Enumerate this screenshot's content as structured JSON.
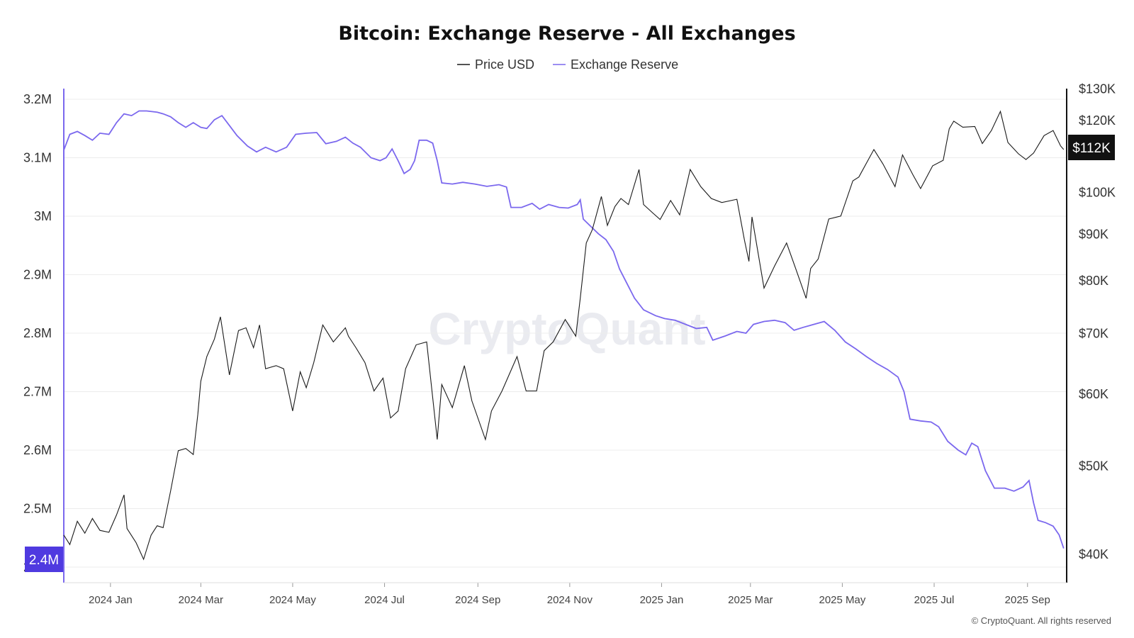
{
  "chart_data": {
    "type": "line",
    "title": "Bitcoin: Exchange Reserve - All Exchanges",
    "legend": {
      "placement": "top-center",
      "entries": [
        "Price USD",
        "Exchange Reserve"
      ]
    },
    "colors": {
      "price": "#1a1a1a",
      "reserve": "#7b68ee",
      "badge_price": "#111111",
      "badge_reserve": "#4f3ae0",
      "left_axis": "#7b68ee",
      "right_axis": "#111111"
    },
    "x_ticks": [
      "2024 Jan",
      "2024 Mar",
      "2024 May",
      "2024 Jul",
      "2024 Sep",
      "2024 Nov",
      "2025 Jan",
      "2025 Mar",
      "2025 May",
      "2025 Jul",
      "2025 Sep"
    ],
    "x_range": [
      "2023-12-01",
      "2025-09-27"
    ],
    "left_axis": {
      "ticks": [
        "3.2M",
        "3.1M",
        "3M",
        "2.9M",
        "2.8M",
        "2.7M",
        "2.6M",
        "2.5M",
        "2.4M"
      ],
      "min": 2.4,
      "max": 3.2,
      "unit": "M"
    },
    "right_axis": {
      "ticks": [
        "$130K",
        "$120K",
        "$100K",
        "$90K",
        "$80K",
        "$70K",
        "$60K",
        "$50K",
        "$40K"
      ],
      "scale": "log",
      "values": [
        130000,
        120000,
        100000,
        90000,
        80000,
        70000,
        60000,
        50000,
        40000
      ]
    },
    "last_values": {
      "price": "$112K",
      "reserve": "2.4M"
    },
    "grid": true,
    "series": [
      {
        "name": "Price USD",
        "axis": "right",
        "points": [
          [
            "2023-12-01",
            42000
          ],
          [
            "2023-12-05",
            41000
          ],
          [
            "2023-12-10",
            43500
          ],
          [
            "2023-12-15",
            42200
          ],
          [
            "2023-12-20",
            43800
          ],
          [
            "2023-12-25",
            42500
          ],
          [
            "2023-12-31",
            42300
          ],
          [
            "2024-01-05",
            44200
          ],
          [
            "2024-01-10",
            46500
          ],
          [
            "2024-01-12",
            42700
          ],
          [
            "2024-01-18",
            41200
          ],
          [
            "2024-01-23",
            39500
          ],
          [
            "2024-01-28",
            42000
          ],
          [
            "2024-02-01",
            43000
          ],
          [
            "2024-02-05",
            42800
          ],
          [
            "2024-02-10",
            47000
          ],
          [
            "2024-02-15",
            52000
          ],
          [
            "2024-02-20",
            52300
          ],
          [
            "2024-02-25",
            51500
          ],
          [
            "2024-02-28",
            57000
          ],
          [
            "2024-03-01",
            62000
          ],
          [
            "2024-03-05",
            66000
          ],
          [
            "2024-03-10",
            69000
          ],
          [
            "2024-03-14",
            73000
          ],
          [
            "2024-03-20",
            63000
          ],
          [
            "2024-03-26",
            70500
          ],
          [
            "2024-03-31",
            71000
          ],
          [
            "2024-04-05",
            67500
          ],
          [
            "2024-04-09",
            71500
          ],
          [
            "2024-04-13",
            64000
          ],
          [
            "2024-04-20",
            64500
          ],
          [
            "2024-04-25",
            64000
          ],
          [
            "2024-05-01",
            57500
          ],
          [
            "2024-05-06",
            63500
          ],
          [
            "2024-05-10",
            61000
          ],
          [
            "2024-05-15",
            65000
          ],
          [
            "2024-05-21",
            71500
          ],
          [
            "2024-05-28",
            68500
          ],
          [
            "2024-06-05",
            71000
          ],
          [
            "2024-06-07",
            69500
          ],
          [
            "2024-06-12",
            67500
          ],
          [
            "2024-06-18",
            65000
          ],
          [
            "2024-06-24",
            60500
          ],
          [
            "2024-06-30",
            62500
          ],
          [
            "2024-07-05",
            56500
          ],
          [
            "2024-07-10",
            57500
          ],
          [
            "2024-07-15",
            64000
          ],
          [
            "2024-07-22",
            68000
          ],
          [
            "2024-07-29",
            68500
          ],
          [
            "2024-08-05",
            53500
          ],
          [
            "2024-08-08",
            61500
          ],
          [
            "2024-08-15",
            58000
          ],
          [
            "2024-08-23",
            64500
          ],
          [
            "2024-08-28",
            59000
          ],
          [
            "2024-09-06",
            53500
          ],
          [
            "2024-09-10",
            57500
          ],
          [
            "2024-09-17",
            60500
          ],
          [
            "2024-09-27",
            66000
          ],
          [
            "2024-10-03",
            60500
          ],
          [
            "2024-10-10",
            60500
          ],
          [
            "2024-10-15",
            67000
          ],
          [
            "2024-10-21",
            68500
          ],
          [
            "2024-10-29",
            72500
          ],
          [
            "2024-11-05",
            69500
          ],
          [
            "2024-11-08",
            76500
          ],
          [
            "2024-11-12",
            88000
          ],
          [
            "2024-11-16",
            91000
          ],
          [
            "2024-11-22",
            99000
          ],
          [
            "2024-11-26",
            92000
          ],
          [
            "2024-12-01",
            96500
          ],
          [
            "2024-12-05",
            98500
          ],
          [
            "2024-12-10",
            97000
          ],
          [
            "2024-12-17",
            106000
          ],
          [
            "2024-12-20",
            97000
          ],
          [
            "2024-12-26",
            95000
          ],
          [
            "2024-12-31",
            93400
          ],
          [
            "2025-01-07",
            98000
          ],
          [
            "2025-01-13",
            94500
          ],
          [
            "2025-01-20",
            106000
          ],
          [
            "2025-01-27",
            101500
          ],
          [
            "2025-02-03",
            98500
          ],
          [
            "2025-02-10",
            97500
          ],
          [
            "2025-02-20",
            98300
          ],
          [
            "2025-02-25",
            88700
          ],
          [
            "2025-02-28",
            84000
          ],
          [
            "2025-03-02",
            94000
          ],
          [
            "2025-03-10",
            78500
          ],
          [
            "2025-03-17",
            83000
          ],
          [
            "2025-03-25",
            88000
          ],
          [
            "2025-03-31",
            82500
          ],
          [
            "2025-04-07",
            76500
          ],
          [
            "2025-04-10",
            82500
          ],
          [
            "2025-04-15",
            84500
          ],
          [
            "2025-04-22",
            93500
          ],
          [
            "2025-04-30",
            94200
          ],
          [
            "2025-05-08",
            103000
          ],
          [
            "2025-05-12",
            104000
          ],
          [
            "2025-05-22",
            111500
          ],
          [
            "2025-05-28",
            107500
          ],
          [
            "2025-06-05",
            101500
          ],
          [
            "2025-06-10",
            110000
          ],
          [
            "2025-06-17",
            104500
          ],
          [
            "2025-06-22",
            101000
          ],
          [
            "2025-06-30",
            107000
          ],
          [
            "2025-07-07",
            108500
          ],
          [
            "2025-07-11",
            117500
          ],
          [
            "2025-07-14",
            119800
          ],
          [
            "2025-07-20",
            118000
          ],
          [
            "2025-07-28",
            118200
          ],
          [
            "2025-08-02",
            113200
          ],
          [
            "2025-08-08",
            117000
          ],
          [
            "2025-08-14",
            122800
          ],
          [
            "2025-08-19",
            113500
          ],
          [
            "2025-08-26",
            110300
          ],
          [
            "2025-08-31",
            108700
          ],
          [
            "2025-09-05",
            110500
          ],
          [
            "2025-09-12",
            115500
          ],
          [
            "2025-09-18",
            117000
          ],
          [
            "2025-09-23",
            112500
          ],
          [
            "2025-09-25",
            111500
          ]
        ]
      },
      {
        "name": "Exchange Reserve",
        "axis": "left",
        "points": [
          [
            "2023-12-01",
            3.113
          ],
          [
            "2023-12-05",
            3.14
          ],
          [
            "2023-12-10",
            3.145
          ],
          [
            "2023-12-15",
            3.138
          ],
          [
            "2023-12-20",
            3.13
          ],
          [
            "2023-12-25",
            3.142
          ],
          [
            "2023-12-31",
            3.14
          ],
          [
            "2024-01-05",
            3.16
          ],
          [
            "2024-01-10",
            3.175
          ],
          [
            "2024-01-15",
            3.172
          ],
          [
            "2024-01-20",
            3.18
          ],
          [
            "2024-01-25",
            3.18
          ],
          [
            "2024-02-01",
            3.178
          ],
          [
            "2024-02-05",
            3.175
          ],
          [
            "2024-02-10",
            3.17
          ],
          [
            "2024-02-15",
            3.16
          ],
          [
            "2024-02-20",
            3.152
          ],
          [
            "2024-02-25",
            3.16
          ],
          [
            "2024-03-01",
            3.152
          ],
          [
            "2024-03-05",
            3.15
          ],
          [
            "2024-03-10",
            3.165
          ],
          [
            "2024-03-15",
            3.172
          ],
          [
            "2024-03-20",
            3.155
          ],
          [
            "2024-03-25",
            3.138
          ],
          [
            "2024-04-01",
            3.12
          ],
          [
            "2024-04-07",
            3.11
          ],
          [
            "2024-04-13",
            3.118
          ],
          [
            "2024-04-20",
            3.11
          ],
          [
            "2024-04-27",
            3.118
          ],
          [
            "2024-05-03",
            3.14
          ],
          [
            "2024-05-10",
            3.142
          ],
          [
            "2024-05-17",
            3.143
          ],
          [
            "2024-05-23",
            3.124
          ],
          [
            "2024-05-30",
            3.128
          ],
          [
            "2024-06-05",
            3.135
          ],
          [
            "2024-06-10",
            3.125
          ],
          [
            "2024-06-15",
            3.118
          ],
          [
            "2024-06-22",
            3.1
          ],
          [
            "2024-06-28",
            3.095
          ],
          [
            "2024-07-02",
            3.1
          ],
          [
            "2024-07-06",
            3.115
          ],
          [
            "2024-07-10",
            3.095
          ],
          [
            "2024-07-14",
            3.073
          ],
          [
            "2024-07-18",
            3.08
          ],
          [
            "2024-07-21",
            3.095
          ],
          [
            "2024-07-24",
            3.13
          ],
          [
            "2024-07-29",
            3.13
          ],
          [
            "2024-08-02",
            3.125
          ],
          [
            "2024-08-05",
            3.095
          ],
          [
            "2024-08-08",
            3.057
          ],
          [
            "2024-08-15",
            3.055
          ],
          [
            "2024-08-22",
            3.058
          ],
          [
            "2024-08-30",
            3.055
          ],
          [
            "2024-09-07",
            3.051
          ],
          [
            "2024-09-15",
            3.054
          ],
          [
            "2024-09-20",
            3.05
          ],
          [
            "2024-09-23",
            3.015
          ],
          [
            "2024-09-30",
            3.015
          ],
          [
            "2024-10-07",
            3.022
          ],
          [
            "2024-10-12",
            3.012
          ],
          [
            "2024-10-18",
            3.02
          ],
          [
            "2024-10-25",
            3.015
          ],
          [
            "2024-10-31",
            3.014
          ],
          [
            "2024-11-06",
            3.02
          ],
          [
            "2024-11-08",
            3.028
          ],
          [
            "2024-11-10",
            2.995
          ],
          [
            "2024-11-14",
            2.985
          ],
          [
            "2024-11-20",
            2.97
          ],
          [
            "2024-11-25",
            2.96
          ],
          [
            "2024-11-30",
            2.94
          ],
          [
            "2024-12-04",
            2.91
          ],
          [
            "2024-12-08",
            2.89
          ],
          [
            "2024-12-14",
            2.86
          ],
          [
            "2024-12-20",
            2.84
          ],
          [
            "2024-12-28",
            2.83
          ],
          [
            "2025-01-03",
            2.825
          ],
          [
            "2025-01-10",
            2.822
          ],
          [
            "2025-01-17",
            2.815
          ],
          [
            "2025-01-24",
            2.808
          ],
          [
            "2025-01-31",
            2.81
          ],
          [
            "2025-02-04",
            2.788
          ],
          [
            "2025-02-12",
            2.795
          ],
          [
            "2025-02-20",
            2.803
          ],
          [
            "2025-02-26",
            2.8
          ],
          [
            "2025-03-03",
            2.815
          ],
          [
            "2025-03-10",
            2.82
          ],
          [
            "2025-03-17",
            2.822
          ],
          [
            "2025-03-24",
            2.818
          ],
          [
            "2025-03-30",
            2.805
          ],
          [
            "2025-04-05",
            2.81
          ],
          [
            "2025-04-12",
            2.815
          ],
          [
            "2025-04-19",
            2.82
          ],
          [
            "2025-04-26",
            2.805
          ],
          [
            "2025-05-03",
            2.785
          ],
          [
            "2025-05-10",
            2.773
          ],
          [
            "2025-05-17",
            2.76
          ],
          [
            "2025-05-24",
            2.748
          ],
          [
            "2025-05-31",
            2.738
          ],
          [
            "2025-06-07",
            2.725
          ],
          [
            "2025-06-11",
            2.7
          ],
          [
            "2025-06-15",
            2.653
          ],
          [
            "2025-06-22",
            2.65
          ],
          [
            "2025-06-29",
            2.648
          ],
          [
            "2025-07-04",
            2.64
          ],
          [
            "2025-07-10",
            2.615
          ],
          [
            "2025-07-17",
            2.6
          ],
          [
            "2025-07-22",
            2.592
          ],
          [
            "2025-07-26",
            2.612
          ],
          [
            "2025-07-30",
            2.606
          ],
          [
            "2025-08-04",
            2.565
          ],
          [
            "2025-08-10",
            2.535
          ],
          [
            "2025-08-17",
            2.535
          ],
          [
            "2025-08-23",
            2.53
          ],
          [
            "2025-08-29",
            2.537
          ],
          [
            "2025-09-02",
            2.548
          ],
          [
            "2025-09-05",
            2.51
          ],
          [
            "2025-09-08",
            2.48
          ],
          [
            "2025-09-13",
            2.476
          ],
          [
            "2025-09-18",
            2.47
          ],
          [
            "2025-09-22",
            2.455
          ],
          [
            "2025-09-25",
            2.432
          ]
        ]
      }
    ]
  },
  "watermark": "CryptoQuant",
  "footer": {
    "credit": "© CryptoQuant. All rights reserved"
  }
}
